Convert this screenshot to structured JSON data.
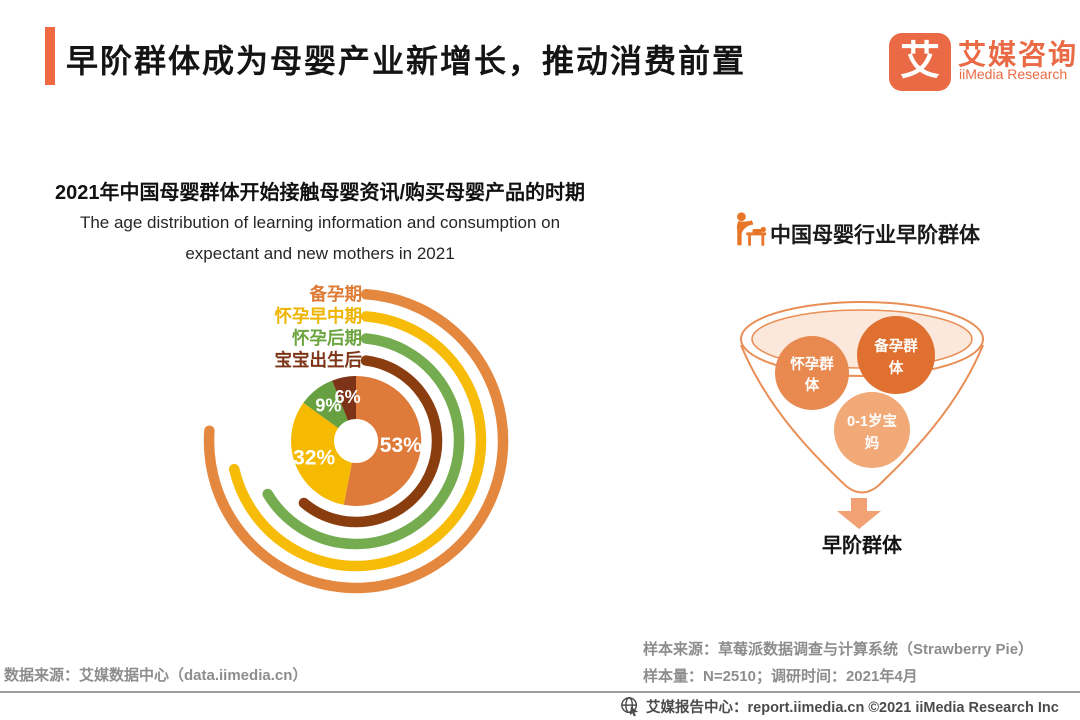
{
  "header": {
    "title": "早阶群体成为母婴产业新增长，推动消费前置",
    "accent_color": "#F0683F",
    "brand": {
      "logo_glyph": "艾",
      "name_cn": "艾媒咨询",
      "name_en": "iiMedia Research",
      "color": "#E96A45"
    }
  },
  "left_chart": {
    "title": "2021年中国母婴群体开始接触母婴资讯/购买母婴产品的时期",
    "subtitle_line1": "The age distribution of learning information and consumption on",
    "subtitle_line2": "expectant and new mothers in 2021"
  },
  "chart_data": {
    "type": "pie",
    "subtype": "donut with decorative concentric radial rings",
    "title": "2021年中国母婴群体开始接触母婴资讯/购买母婴产品的时期",
    "subtitle": "The age distribution of learning information and consumption on expectant and new mothers in 2021",
    "unit": "%",
    "categories": [
      "备孕期",
      "怀孕早中期",
      "怀孕后期",
      "宝宝出生后"
    ],
    "values": [
      53,
      32,
      9,
      6
    ],
    "value_labels": [
      "53%",
      "32%",
      "9%",
      "6%"
    ],
    "slice_colors": [
      "#DF7B3A",
      "#F6BA00",
      "#67A040",
      "#7C3318"
    ],
    "ring_colors": [
      "#E4873F",
      "#F7BC08",
      "#75AC50",
      "#8A3E10"
    ],
    "label_colors": [
      "#DF7B35",
      "#EFB400",
      "#6CA43F",
      "#7E3517"
    ],
    "ring_sweeps_deg": [
      274,
      257,
      239,
      220
    ],
    "start_angle_deg": 0,
    "direction": "clockwise",
    "legend_position": "top-left"
  },
  "funnel": {
    "header": "中国母婴行业早阶群体",
    "header_icon": "mother-baby-care-icon",
    "outline_color": "#E98E55",
    "mouth_tint_color": "#FBE8DA",
    "bubbles": [
      {
        "label": "怀孕群体",
        "line1": "怀孕群",
        "line2": "体",
        "color": "#E8894F"
      },
      {
        "label": "备孕群体",
        "line1": "备孕群",
        "line2": "体",
        "color": "#E0702F"
      },
      {
        "label": "0-1岁宝妈",
        "line1": "0-1岁宝",
        "line2": "妈",
        "color": "#F0A977"
      }
    ],
    "arrow_color": "#F1A174",
    "result_label": "早阶群体"
  },
  "sources": {
    "data_source": "数据来源：艾媒数据中心（data.iimedia.cn）",
    "sample_source": "样本来源：草莓派数据调查与计算系统（Strawberry Pie）",
    "sample_info": "样本量：N=2510；调研时间：2021年4月"
  },
  "footer": {
    "icon": "globe-cursor-icon",
    "text": "艾媒报告中心：report.iimedia.cn   ©2021  iiMedia Research Inc"
  }
}
